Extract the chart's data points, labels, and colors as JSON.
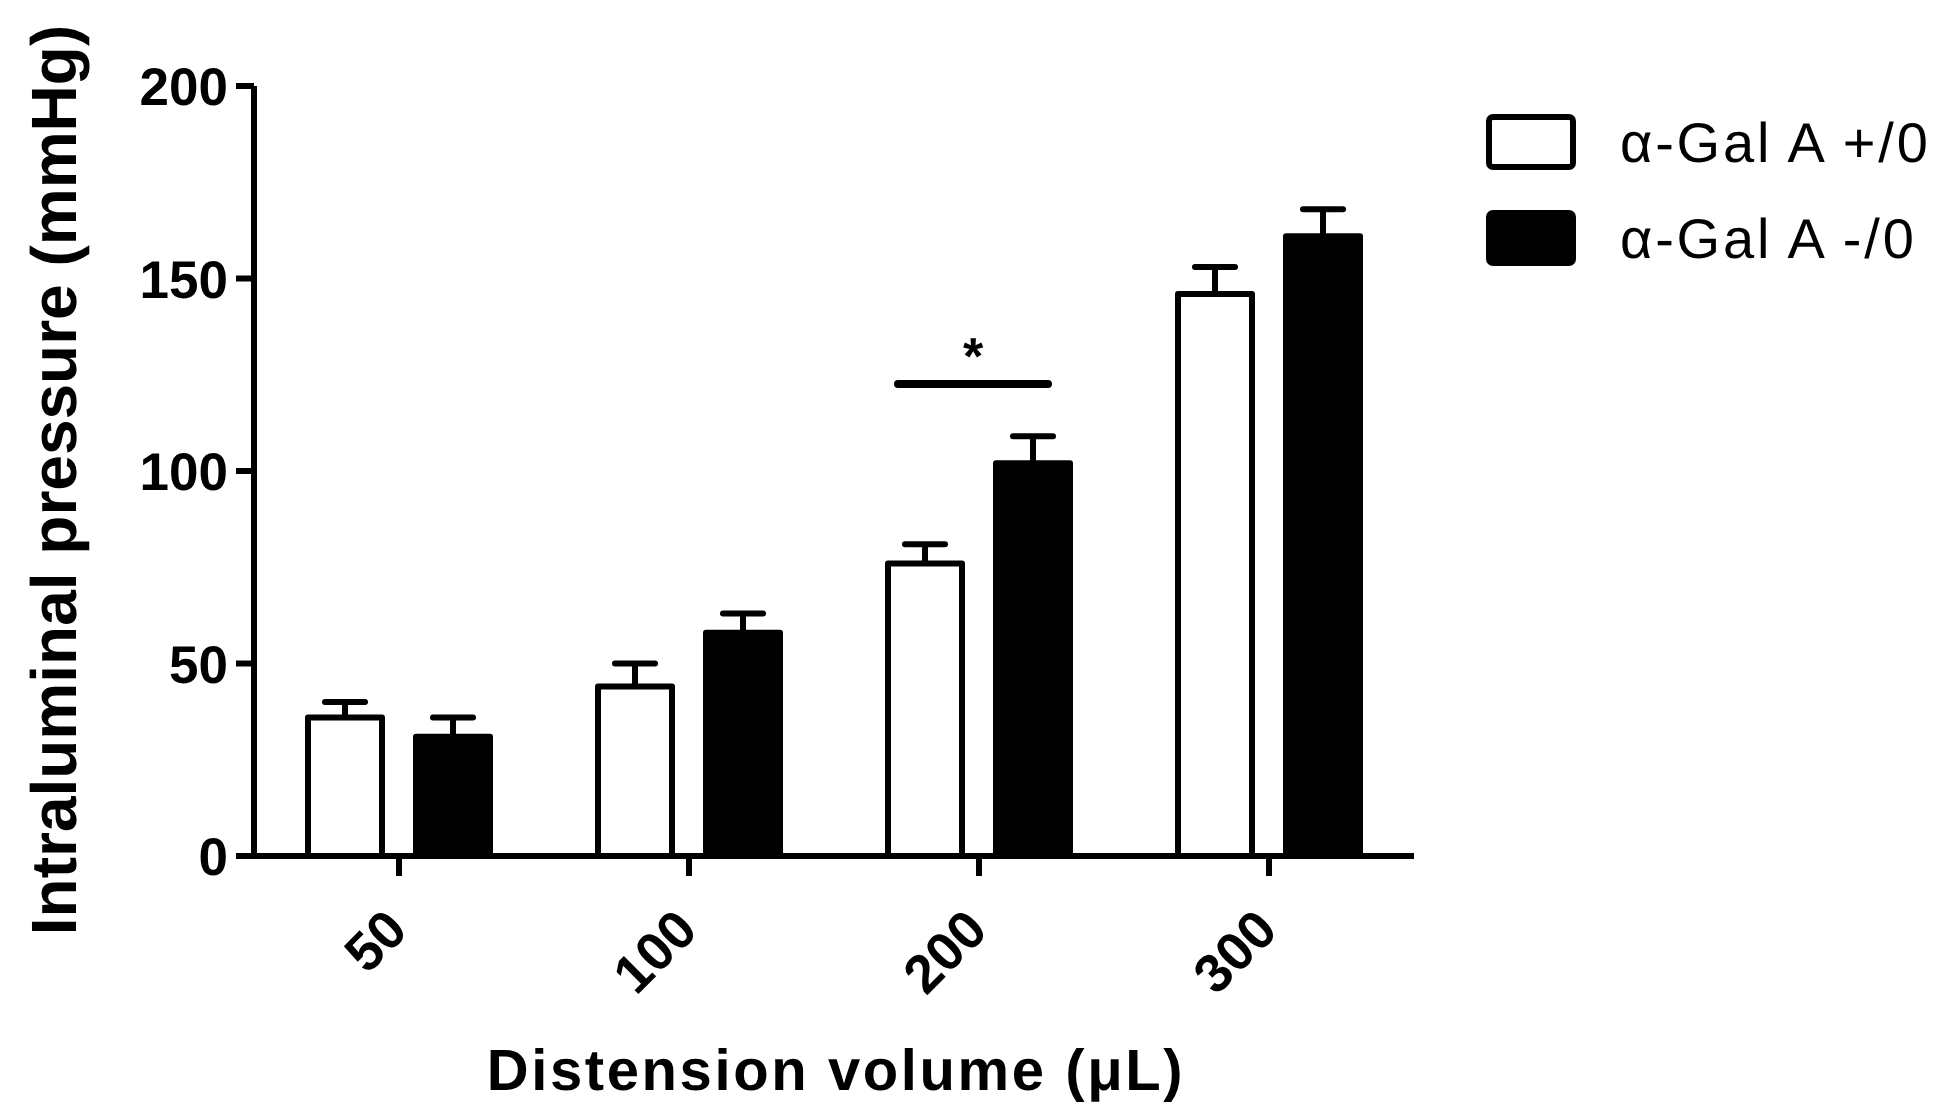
{
  "chart_data": {
    "type": "bar",
    "xlabel": "Distension volume (μL)",
    "ylabel": "Intraluminal pressure (mmHg)",
    "categories": [
      "50",
      "100",
      "200",
      "300"
    ],
    "series": [
      {
        "name": "α-Gal A +/0",
        "color": "#ffffff",
        "values": [
          36,
          44,
          76,
          146
        ],
        "errors": [
          [
            36,
            40
          ],
          [
            44,
            50
          ],
          [
            76,
            81
          ],
          [
            146,
            153
          ]
        ]
      },
      {
        "name": "α-Gal A -/0",
        "color": "#000000",
        "values": [
          31,
          58,
          102,
          161
        ],
        "errors": [
          [
            31,
            36
          ],
          [
            58,
            63
          ],
          [
            102,
            109
          ],
          [
            161,
            168
          ]
        ]
      }
    ],
    "ylim": [
      0,
      200
    ],
    "yticks": [
      0,
      50,
      100,
      150,
      200
    ],
    "legend": "top right",
    "annotations": [
      "*"
    ]
  }
}
